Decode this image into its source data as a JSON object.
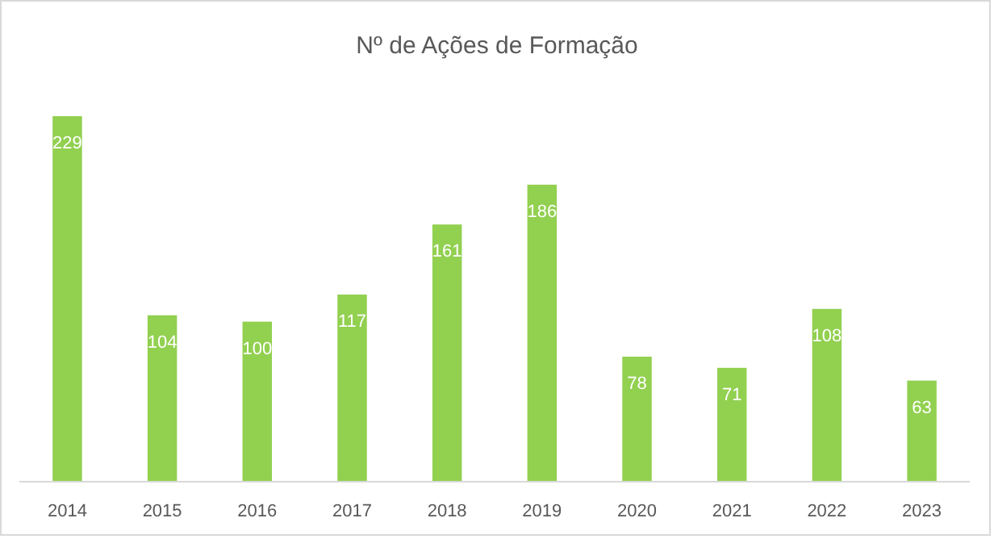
{
  "chart_data": {
    "type": "bar",
    "title": "Nº de Ações de Formação",
    "categories": [
      "2014",
      "2015",
      "2016",
      "2017",
      "2018",
      "2019",
      "2020",
      "2021",
      "2022",
      "2023"
    ],
    "values": [
      229,
      104,
      100,
      117,
      161,
      186,
      78,
      71,
      108,
      63
    ],
    "color": "#92d050",
    "data_labels": true
  }
}
